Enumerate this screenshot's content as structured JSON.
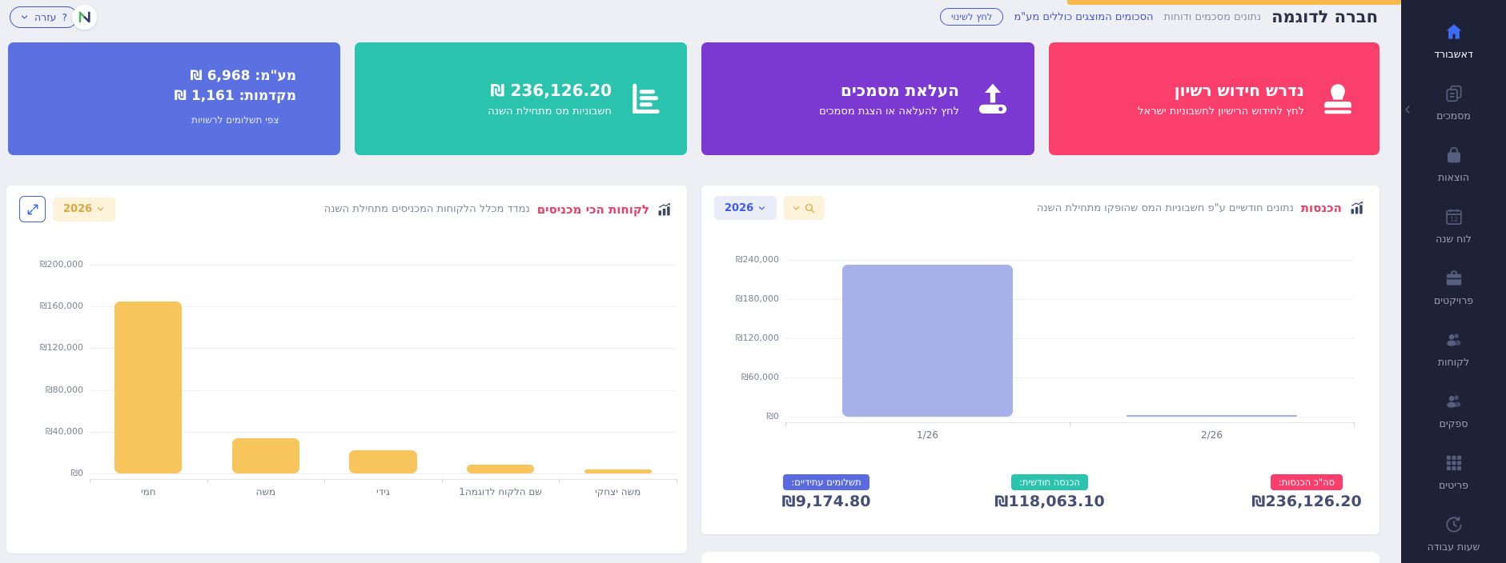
{
  "topbar": {
    "orange_bar_color": "#f6b84a",
    "title": "חברה לדוגמה",
    "subtitle": "נתונים מסכמים ודוחות",
    "vat_note": "הסכומים המוצגים כוללים מע\"מ",
    "change_button": "לחץ לשינוי",
    "help_button": "עזרה",
    "help_qmark": "?"
  },
  "sidebar": {
    "bg_color": "#1d2237",
    "active_color": "#3f6af3",
    "items": [
      {
        "label": "דאשבורד",
        "icon": "home-icon",
        "active": true
      },
      {
        "label": "מסמכים",
        "icon": "documents-icon",
        "active": false
      },
      {
        "label": "הוצאות",
        "icon": "expenses-bag-icon",
        "active": false
      },
      {
        "label": "לוח שנה",
        "icon": "calendar-icon",
        "active": false
      },
      {
        "label": "פרויקטים",
        "icon": "briefcase-icon",
        "active": false
      },
      {
        "label": "לקוחות",
        "icon": "clients-icon",
        "active": false
      },
      {
        "label": "ספקים",
        "icon": "suppliers-icon",
        "active": false
      },
      {
        "label": "פריטים",
        "icon": "items-grid-icon",
        "active": false
      },
      {
        "label": "שעות עבודה",
        "icon": "work-hours-icon",
        "active": false
      }
    ]
  },
  "cards": {
    "license": {
      "title": "נדרש חידוש רשיון",
      "subtitle": "לחץ לחידוש הרישיון לחשבוניות ישראל",
      "color": "#fb3f6c",
      "icon": "stamp-icon"
    },
    "upload": {
      "title": "העלאת מסמכים",
      "subtitle": "לחץ להעלאה או הצגת מסמכים",
      "color": "#7b39d2",
      "icon": "upload-icon"
    },
    "invoices": {
      "title": "₪ 236,126.20",
      "subtitle": "חשבוניות מס מתחילת השנה",
      "color": "#2ac3ad",
      "icon": "chart-bars-icon"
    },
    "tax": {
      "line1": "מע\"מ: 6,968 ₪",
      "line2": "מקדמות: 1,161 ₪",
      "subtitle": "צפי תשלומים לרשויות",
      "color": "#5b71e2"
    }
  },
  "chart_data": [
    {
      "id": "top_clients",
      "type": "bar",
      "title": "לקוחות הכי מכניסים",
      "subtitle": "נמדד מכלל הלקוחות המכניסים מתחילת השנה",
      "year_filter": "2026",
      "categories": [
        "חמי",
        "משה",
        "גידי",
        "שם הלקוח לדוגמה1",
        "משה יצחקי"
      ],
      "values": [
        164500,
        34000,
        22500,
        8500,
        4000
      ],
      "bar_color": "#f8c45c",
      "ylim": [
        0,
        200000
      ],
      "yticks": [
        "₪200,000",
        "₪160,000",
        "₪120,000",
        "₪80,000",
        "₪40,000",
        "₪0"
      ],
      "grid": true,
      "legend": false
    },
    {
      "id": "income",
      "type": "bar",
      "title": "הכנסות",
      "subtitle": "נתונים חודשיים ע\"פ חשבוניות המס שהופקו מתחילת השנה",
      "year_filter": "2026",
      "categories": [
        "1/26",
        "2/26"
      ],
      "values": [
        233000,
        3000
      ],
      "bar_color": "#a6b0e9",
      "ylim": [
        0,
        240000
      ],
      "yticks": [
        "₪240,000",
        "₪180,000",
        "₪120,000",
        "₪60,000",
        "₪0"
      ],
      "grid": true,
      "legend": false
    }
  ],
  "income_stats": [
    {
      "label": "סה\"כ הכנסות:",
      "value": "₪236,126.20",
      "badge_color": "#fb3f6c"
    },
    {
      "label": "הכנסה חודשית:",
      "value": "₪118,063.10",
      "badge_color": "#2ac3ad"
    },
    {
      "label": "תשלומים עתידיים:",
      "value": "₪9,174.80",
      "badge_color": "#5a6be0"
    }
  ]
}
